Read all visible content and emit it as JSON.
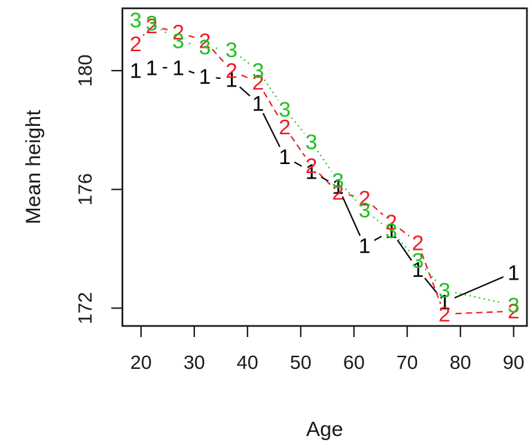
{
  "chart_data": {
    "type": "line",
    "title": "",
    "xlabel": "Age",
    "ylabel": "Mean height",
    "xlim": [
      16.5,
      92.5
    ],
    "ylim": [
      171.4,
      182.1
    ],
    "x_ticks": [
      20,
      30,
      40,
      50,
      60,
      70,
      80,
      90
    ],
    "y_ticks": [
      172,
      176,
      180
    ],
    "grid": false,
    "legend": "none",
    "series": [
      {
        "marker": "1",
        "color": "#000000",
        "line_style": "solid",
        "points": [
          {
            "x": 19,
            "y": 180.0
          },
          {
            "x": 22,
            "y": 180.1
          },
          {
            "x": 27,
            "y": 180.1
          },
          {
            "x": 32,
            "y": 179.8
          },
          {
            "x": 37,
            "y": 179.7
          },
          {
            "x": 42,
            "y": 178.9
          },
          {
            "x": 47,
            "y": 177.1
          },
          {
            "x": 52,
            "y": 176.6
          },
          {
            "x": 57,
            "y": 176.1
          },
          {
            "x": 62,
            "y": 174.1
          },
          {
            "x": 67,
            "y": 174.6
          },
          {
            "x": 72,
            "y": 173.3
          },
          {
            "x": 77,
            "y": 172.2
          },
          {
            "x": 90,
            "y": 173.2
          }
        ]
      },
      {
        "marker": "2",
        "color": "#ee1c25",
        "line_style": "dashed",
        "points": [
          {
            "x": 19,
            "y": 180.9
          },
          {
            "x": 22,
            "y": 181.5
          },
          {
            "x": 27,
            "y": 181.3
          },
          {
            "x": 32,
            "y": 181.0
          },
          {
            "x": 37,
            "y": 180.0
          },
          {
            "x": 42,
            "y": 179.6
          },
          {
            "x": 47,
            "y": 178.1
          },
          {
            "x": 52,
            "y": 176.8
          },
          {
            "x": 57,
            "y": 175.9
          },
          {
            "x": 62,
            "y": 175.7
          },
          {
            "x": 67,
            "y": 174.9
          },
          {
            "x": 72,
            "y": 174.2
          },
          {
            "x": 77,
            "y": 171.8
          },
          {
            "x": 90,
            "y": 171.9
          }
        ]
      },
      {
        "marker": "3",
        "color": "#1fbf1f",
        "line_style": "dotted",
        "points": [
          {
            "x": 19,
            "y": 181.7
          },
          {
            "x": 22,
            "y": 181.6
          },
          {
            "x": 27,
            "y": 181.0
          },
          {
            "x": 32,
            "y": 180.8
          },
          {
            "x": 37,
            "y": 180.7
          },
          {
            "x": 42,
            "y": 180.0
          },
          {
            "x": 47,
            "y": 178.7
          },
          {
            "x": 52,
            "y": 177.6
          },
          {
            "x": 57,
            "y": 176.3
          },
          {
            "x": 62,
            "y": 175.3
          },
          {
            "x": 67,
            "y": 174.6
          },
          {
            "x": 72,
            "y": 173.6
          },
          {
            "x": 77,
            "y": 172.6
          },
          {
            "x": 90,
            "y": 172.1
          }
        ]
      }
    ]
  }
}
